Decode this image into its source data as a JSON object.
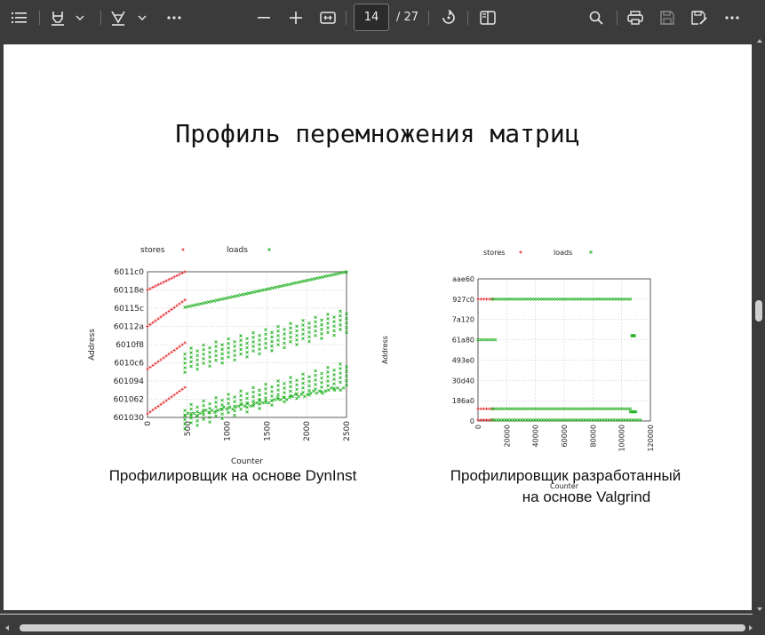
{
  "toolbar": {
    "icons": [
      "contents-icon",
      "highlight-icon",
      "chevron-down-icon",
      "draw-icon",
      "chevron-down-icon",
      "more-icon",
      "zoom-out-icon",
      "zoom-in-icon",
      "fit-width-icon",
      "rotate-icon",
      "two-page-icon",
      "search-icon",
      "print-icon",
      "save-icon",
      "save-as-icon",
      "more-options-icon"
    ],
    "page_number": "14",
    "page_total": "/ 27"
  },
  "slide": {
    "title": "Профиль перемножения матриц",
    "caption_left": "Профилировщик на основе DynInst",
    "caption_right_line1": "Профилировщик разработанный",
    "caption_right_line2": "на основе Valgrind"
  },
  "colors": {
    "stores": "#e41a1c",
    "loads": "#1fb01f",
    "toolbar_bg": "#3b3b3b"
  },
  "chart_data": [
    {
      "type": "scatter",
      "title": "",
      "xlabel": "Counter",
      "ylabel": "Address",
      "xticks": [
        "0",
        "500",
        "1000",
        "1500",
        "2000",
        "2500"
      ],
      "yticks": [
        "601030",
        "601062",
        "601094",
        "6010c6",
        "6010f8",
        "60112a",
        "60115c",
        "60118e",
        "6011c0"
      ],
      "xlim": [
        0,
        2500
      ],
      "ylim": [
        0,
        8
      ],
      "grid": true,
      "legend_position": "top",
      "series": [
        {
          "name": "stores",
          "marker": "+",
          "segments": [
            {
              "x": [
                0,
                470
              ],
              "y": [
                0.2,
                1.65
              ]
            },
            {
              "x": [
                0,
                470
              ],
              "y": [
                2.65,
                4.1
              ]
            },
            {
              "x": [
                0,
                470
              ],
              "y": [
                5.0,
                6.45
              ]
            },
            {
              "x": [
                0,
                470
              ],
              "y": [
                7.0,
                8.0
              ]
            }
          ]
        },
        {
          "name": "loads",
          "marker": "x",
          "segments": [
            {
              "x": [
                470,
                2500
              ],
              "y": [
                6.05,
                8.0
              ],
              "kind": "diag"
            },
            {
              "x": [
                470,
                2500
              ],
              "y": [
                0.0,
                2.4
              ],
              "kind": "band",
              "rows": 5,
              "spread": 0.5
            },
            {
              "x": [
                470,
                2500
              ],
              "y": [
                3.1,
                5.3
              ],
              "kind": "band",
              "rows": 5,
              "spread": 0.5
            },
            {
              "x": [
                470,
                2500
              ],
              "y": [
                1.0,
                2.4
              ],
              "kind": "steps"
            }
          ]
        }
      ]
    },
    {
      "type": "scatter",
      "title": "",
      "xlabel": "Counter",
      "ylabel": "Address",
      "xticks": [
        "0",
        "20000",
        "40000",
        "60000",
        "80000",
        "100000",
        "120000"
      ],
      "yticks": [
        "0",
        "186a0",
        "30d40",
        "493e0",
        "61a80",
        "7a120",
        "927c0",
        "aae60"
      ],
      "xlim": [
        0,
        120000
      ],
      "ylim": [
        0,
        7
      ],
      "grid": true,
      "legend_position": "top",
      "series": [
        {
          "name": "stores",
          "marker": "+",
          "segments": [
            {
              "x": [
                0,
                10000
              ],
              "y": [
                6.0,
                6.0
              ]
            },
            {
              "x": [
                0,
                10000
              ],
              "y": [
                0.6,
                0.6
              ]
            },
            {
              "x": [
                0,
                10000
              ],
              "y": [
                0.05,
                0.05
              ]
            }
          ]
        },
        {
          "name": "loads",
          "marker": "x",
          "segments": [
            {
              "x": [
                10000,
                106000
              ],
              "y": [
                6.0,
                6.0
              ]
            },
            {
              "x": [
                0,
                12000
              ],
              "y": [
                4.0,
                4.0
              ]
            },
            {
              "x": [
                10000,
                106000
              ],
              "y": [
                0.6,
                0.6
              ]
            },
            {
              "x": [
                10000,
                113000
              ],
              "y": [
                0.05,
                0.05
              ]
            },
            {
              "x": [
                107000,
                109000
              ],
              "y": [
                4.2,
                4.2
              ]
            },
            {
              "x": [
                106000,
                110000
              ],
              "y": [
                0.45,
                0.45
              ]
            }
          ]
        }
      ]
    }
  ]
}
